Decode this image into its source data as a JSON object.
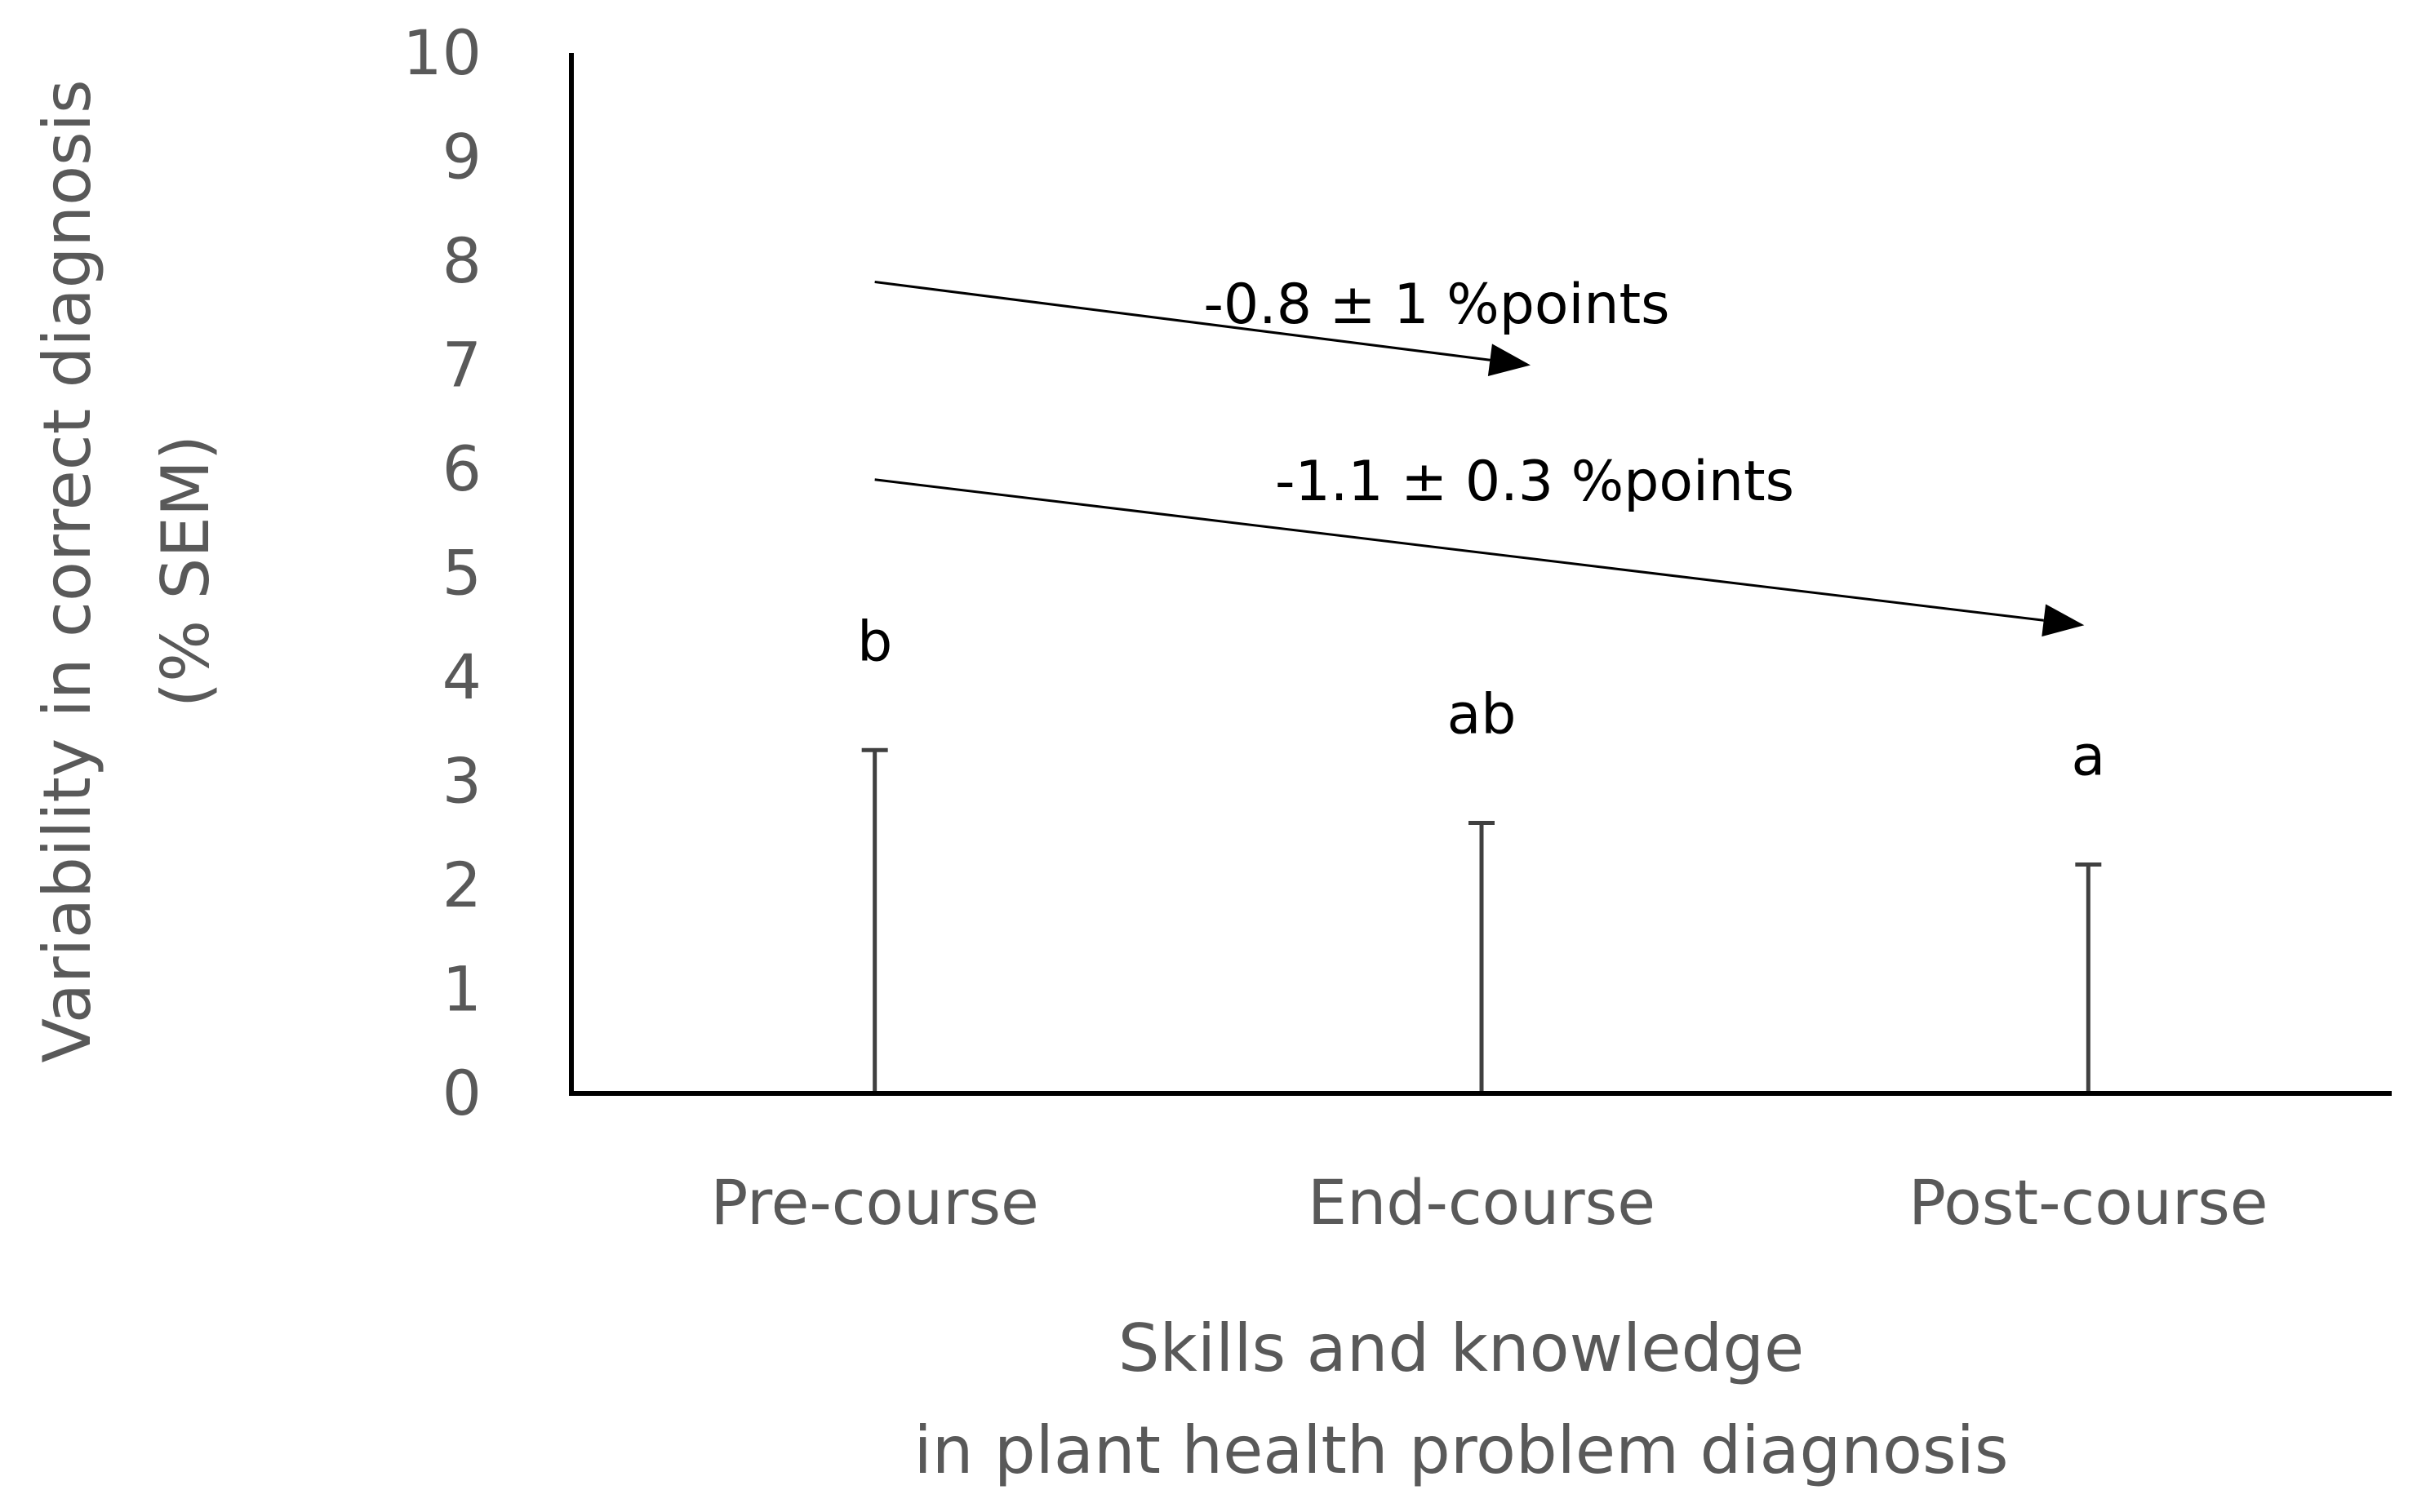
{
  "chart_data": {
    "type": "bar",
    "title": "",
    "categories": [
      "Pre-course",
      "End-course",
      "Post-course"
    ],
    "series": [
      {
        "values": [
          0,
          0,
          0
        ],
        "error_upper": [
          3.3,
          2.6,
          2.2
        ],
        "significance": [
          "b",
          "ab",
          "a"
        ]
      }
    ],
    "ylabel_lines": [
      "Variability in correct  diagnosis",
      "(% SEM)"
    ],
    "xlabel_lines": [
      "Skills and knowledge",
      "in plant health problem diagnosis"
    ],
    "ylim": [
      0,
      10
    ],
    "yticks": [
      0,
      1,
      2,
      3,
      4,
      5,
      6,
      7,
      8,
      9,
      10
    ],
    "grid": false,
    "annotations": [
      {
        "text": "-0.8 ± 1 %points",
        "from": "Pre-course",
        "to": "End-course"
      },
      {
        "text": "-1.1 ± 0.3 %points",
        "from": "Pre-course",
        "to": "Post-course"
      }
    ],
    "colors": {
      "axis": "#000000",
      "error_bar": "#404040",
      "tick_label": "#595959"
    }
  }
}
